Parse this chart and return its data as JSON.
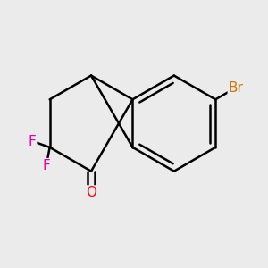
{
  "background_color": "#ebebeb",
  "bond_color": "#000000",
  "bond_width": 1.8,
  "atom_labels": {
    "F1": {
      "text": "F",
      "color": "#e800a0",
      "fontsize": 11
    },
    "F2": {
      "text": "F",
      "color": "#e800a0",
      "fontsize": 11
    },
    "O": {
      "text": "O",
      "color": "#ff0000",
      "fontsize": 11
    },
    "Br": {
      "text": "Br",
      "color": "#cc7700",
      "fontsize": 11
    }
  },
  "figsize": [
    3.0,
    3.0
  ],
  "dpi": 100
}
